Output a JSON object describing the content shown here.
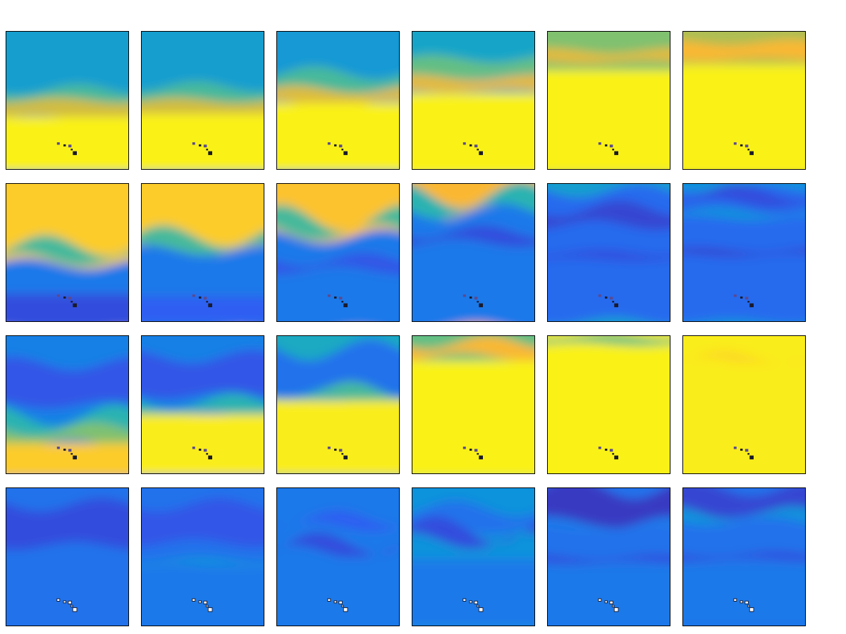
{
  "figure": {
    "colormap": "parula",
    "colormap_stops": [
      "#3e26a8",
      "#2e5ff3",
      "#0e8fe0",
      "#1eb0bb",
      "#6fc27a",
      "#c2bd46",
      "#fdb832",
      "#f9fb15"
    ],
    "island_chain_colors": {
      "default": "#1a1a2a",
      "accent": "#5a4a90",
      "light": "#ffffff"
    },
    "rows": [
      {
        "name": "row-1",
        "panels": [
          {
            "layers": [
              {
                "level": 0.35
              },
              {
                "level": 0.5,
                "start": 0.42,
                "thick": 0.12,
                "amp": 0.04
              },
              {
                "level": 0.75,
                "start": 0.5,
                "thick": 0.12,
                "amp": 0.02
              },
              {
                "level": 0.98,
                "start": 0.62,
                "thick": 0.4
              }
            ],
            "islands": "dark"
          },
          {
            "layers": [
              {
                "level": 0.35
              },
              {
                "level": 0.5,
                "start": 0.4,
                "thick": 0.12,
                "amp": 0.04
              },
              {
                "level": 0.75,
                "start": 0.5,
                "thick": 0.12,
                "amp": 0.02
              },
              {
                "level": 0.98,
                "start": 0.6,
                "thick": 0.42
              }
            ],
            "islands": "dark"
          },
          {
            "layers": [
              {
                "level": 0.33
              },
              {
                "level": 0.5,
                "start": 0.3,
                "thick": 0.12,
                "amp": 0.05
              },
              {
                "level": 0.78,
                "start": 0.42,
                "thick": 0.1,
                "amp": 0.03
              },
              {
                "level": 0.98,
                "start": 0.52,
                "thick": 0.5
              }
            ],
            "islands": "dark"
          },
          {
            "layers": [
              {
                "level": 0.38
              },
              {
                "level": 0.55,
                "start": 0.2,
                "thick": 0.12,
                "amp": 0.03
              },
              {
                "level": 0.8,
                "start": 0.33,
                "thick": 0.1,
                "amp": 0.02
              },
              {
                "level": 0.98,
                "start": 0.45,
                "thick": 0.6
              }
            ],
            "islands": "dark"
          },
          {
            "layers": [
              {
                "level": 0.6
              },
              {
                "level": 0.8,
                "start": 0.14,
                "thick": 0.08,
                "amp": 0.02
              },
              {
                "level": 0.98,
                "start": 0.28,
                "thick": 0.75
              }
            ],
            "islands": "dark"
          },
          {
            "layers": [
              {
                "level": 0.68
              },
              {
                "level": 0.85,
                "start": 0.08,
                "thick": 0.12,
                "amp": 0.02
              },
              {
                "level": 0.98,
                "start": 0.24,
                "thick": 0.8
              }
            ],
            "islands": "dark"
          }
        ]
      },
      {
        "name": "row-2",
        "panels": [
          {
            "layers": [
              {
                "level": 0.9
              },
              {
                "level": 0.5,
                "start": 0.45,
                "thick": 0.1,
                "amp": 0.08
              },
              {
                "level": 0.22,
                "start": 0.58,
                "thick": 0.5,
                "amp": 0.04
              },
              {
                "level": 0.1,
                "start": 0.8,
                "thick": 0.25
              }
            ],
            "islands": "dark"
          },
          {
            "layers": [
              {
                "level": 0.9
              },
              {
                "level": 0.5,
                "start": 0.38,
                "thick": 0.1,
                "amp": 0.08
              },
              {
                "level": 0.22,
                "start": 0.48,
                "thick": 0.6,
                "amp": 0.04
              },
              {
                "level": 0.14,
                "start": 0.82,
                "thick": 0.2
              }
            ],
            "islands": "dark"
          },
          {
            "layers": [
              {
                "level": 0.88
              },
              {
                "level": 0.5,
                "start": 0.25,
                "thick": 0.1,
                "amp": 0.1
              },
              {
                "level": 0.22,
                "start": 0.38,
                "thick": 0.7,
                "amp": 0.05
              },
              {
                "level": 0.12,
                "start": 0.55,
                "thick": 0.08,
                "amp": 0.05
              }
            ],
            "islands": "dark"
          },
          {
            "layers": [
              {
                "level": 0.85
              },
              {
                "level": 0.45,
                "start": 0.08,
                "thick": 0.12,
                "amp": 0.1
              },
              {
                "level": 0.22,
                "start": 0.2,
                "thick": 0.85,
                "amp": 0.06
              },
              {
                "level": 0.1,
                "start": 0.35,
                "thick": 0.08,
                "amp": 0.05
              }
            ],
            "islands": "dark"
          },
          {
            "layers": [
              {
                "level": 0.35
              },
              {
                "level": 0.18,
                "start": 0.05,
                "thick": 0.95,
                "amp": 0.05
              },
              {
                "level": 0.08,
                "start": 0.18,
                "thick": 0.12,
                "amp": 0.06
              },
              {
                "level": 0.1,
                "start": 0.5,
                "thick": 0.05,
                "amp": 0.02
              }
            ],
            "islands": "dark"
          },
          {
            "layers": [
              {
                "level": 0.3
              },
              {
                "level": 0.18,
                "start": 0.03,
                "thick": 0.97,
                "amp": 0.03
              },
              {
                "level": 0.1,
                "start": 0.06,
                "thick": 0.08,
                "amp": 0.06
              },
              {
                "level": 0.3,
                "start": 0.2,
                "thick": 0.05,
                "amp": 0.03
              },
              {
                "level": 0.08,
                "start": 0.48,
                "thick": 0.04,
                "amp": 0.02
              }
            ],
            "islands": "dark"
          }
        ]
      },
      {
        "name": "row-3",
        "panels": [
          {
            "layers": [
              {
                "level": 0.24
              },
              {
                "level": 0.12,
                "start": 0.2,
                "thick": 0.3,
                "amp": 0.05
              },
              {
                "level": 0.45,
                "start": 0.58,
                "thick": 0.12,
                "amp": 0.08
              },
              {
                "level": 0.6,
                "start": 0.68,
                "thick": 0.1,
                "amp": 0.05
              },
              {
                "level": 0.9,
                "start": 0.78,
                "thick": 0.25
              }
            ],
            "islands": "dark"
          },
          {
            "layers": [
              {
                "level": 0.24
              },
              {
                "level": 0.12,
                "start": 0.15,
                "thick": 0.28,
                "amp": 0.05
              },
              {
                "level": 0.45,
                "start": 0.48,
                "thick": 0.1,
                "amp": 0.06
              },
              {
                "level": 0.97,
                "start": 0.57,
                "thick": 0.45
              }
            ],
            "islands": "dark"
          },
          {
            "layers": [
              {
                "level": 0.4
              },
              {
                "level": 0.2,
                "start": 0.1,
                "thick": 0.3,
                "amp": 0.08
              },
              {
                "level": 0.5,
                "start": 0.4,
                "thick": 0.08,
                "amp": 0.07
              },
              {
                "level": 0.97,
                "start": 0.47,
                "thick": 0.55
              }
            ],
            "islands": "dark"
          },
          {
            "layers": [
              {
                "level": 0.55
              },
              {
                "level": 0.85,
                "start": 0.05,
                "thick": 0.1,
                "amp": 0.05
              },
              {
                "level": 0.98,
                "start": 0.18,
                "thick": 0.85
              }
            ],
            "islands": "dark"
          },
          {
            "layers": [
              {
                "level": 0.97
              },
              {
                "level": 0.55,
                "start": 0.0,
                "thick": 0.06,
                "amp": 0.02
              },
              {
                "level": 0.98,
                "start": 0.08,
                "thick": 0.95
              }
            ],
            "islands": "dark"
          },
          {
            "layers": [
              {
                "level": 0.97
              },
              {
                "level": 0.93,
                "start": 0.15,
                "thick": 0.04,
                "amp": 0.05
              },
              {
                "level": 0.97,
                "start": 0.2,
                "thick": 0.8
              }
            ],
            "islands": "dark"
          }
        ]
      },
      {
        "name": "row-4",
        "panels": [
          {
            "layers": [
              {
                "level": 0.2
              },
              {
                "level": 0.1,
                "start": 0.12,
                "thick": 0.3,
                "amp": 0.05
              },
              {
                "level": 0.2,
                "start": 0.48,
                "thick": 0.55,
                "amp": 0.04
              }
            ],
            "islands": "light"
          },
          {
            "layers": [
              {
                "level": 0.2
              },
              {
                "level": 0.12,
                "start": 0.12,
                "thick": 0.28,
                "amp": 0.05
              },
              {
                "level": 0.3,
                "start": 0.52,
                "thick": 0.04,
                "amp": 0.02
              },
              {
                "level": 0.22,
                "start": 0.56,
                "thick": 0.45
              }
            ],
            "islands": "light"
          },
          {
            "layers": [
              {
                "level": 0.22
              },
              {
                "level": 0.14,
                "start": 0.22,
                "thick": 0.06,
                "amp": 0.06
              },
              {
                "level": 0.1,
                "start": 0.4,
                "thick": 0.06,
                "amp": 0.08
              },
              {
                "level": 0.22,
                "start": 0.5,
                "thick": 0.5
              }
            ],
            "islands": "light"
          },
          {
            "layers": [
              {
                "level": 0.3
              },
              {
                "level": 0.2,
                "start": 0.15,
                "thick": 0.15,
                "amp": 0.06
              },
              {
                "level": 0.1,
                "start": 0.3,
                "thick": 0.08,
                "amp": 0.1
              },
              {
                "level": 0.3,
                "start": 0.45,
                "thick": 0.05,
                "amp": 0.03
              },
              {
                "level": 0.22,
                "start": 0.52,
                "thick": 0.5
              }
            ],
            "islands": "light"
          },
          {
            "layers": [
              {
                "level": 0.2
              },
              {
                "level": 0.05,
                "start": 0.0,
                "thick": 0.25,
                "amp": 0.08
              },
              {
                "level": 0.22,
                "start": 0.25,
                "thick": 0.05,
                "amp": 0.04
              },
              {
                "level": 0.1,
                "start": 0.5,
                "thick": 0.04,
                "amp": 0.02
              },
              {
                "level": 0.22,
                "start": 0.56,
                "thick": 0.45
              }
            ],
            "islands": "light"
          },
          {
            "layers": [
              {
                "level": 0.2
              },
              {
                "level": 0.08,
                "start": 0.0,
                "thick": 0.18,
                "amp": 0.06
              },
              {
                "level": 0.3,
                "start": 0.18,
                "thick": 0.06,
                "amp": 0.05
              },
              {
                "level": 0.1,
                "start": 0.48,
                "thick": 0.04,
                "amp": 0.02
              },
              {
                "level": 0.22,
                "start": 0.55,
                "thick": 0.45
              }
            ],
            "islands": "light"
          }
        ]
      }
    ]
  }
}
